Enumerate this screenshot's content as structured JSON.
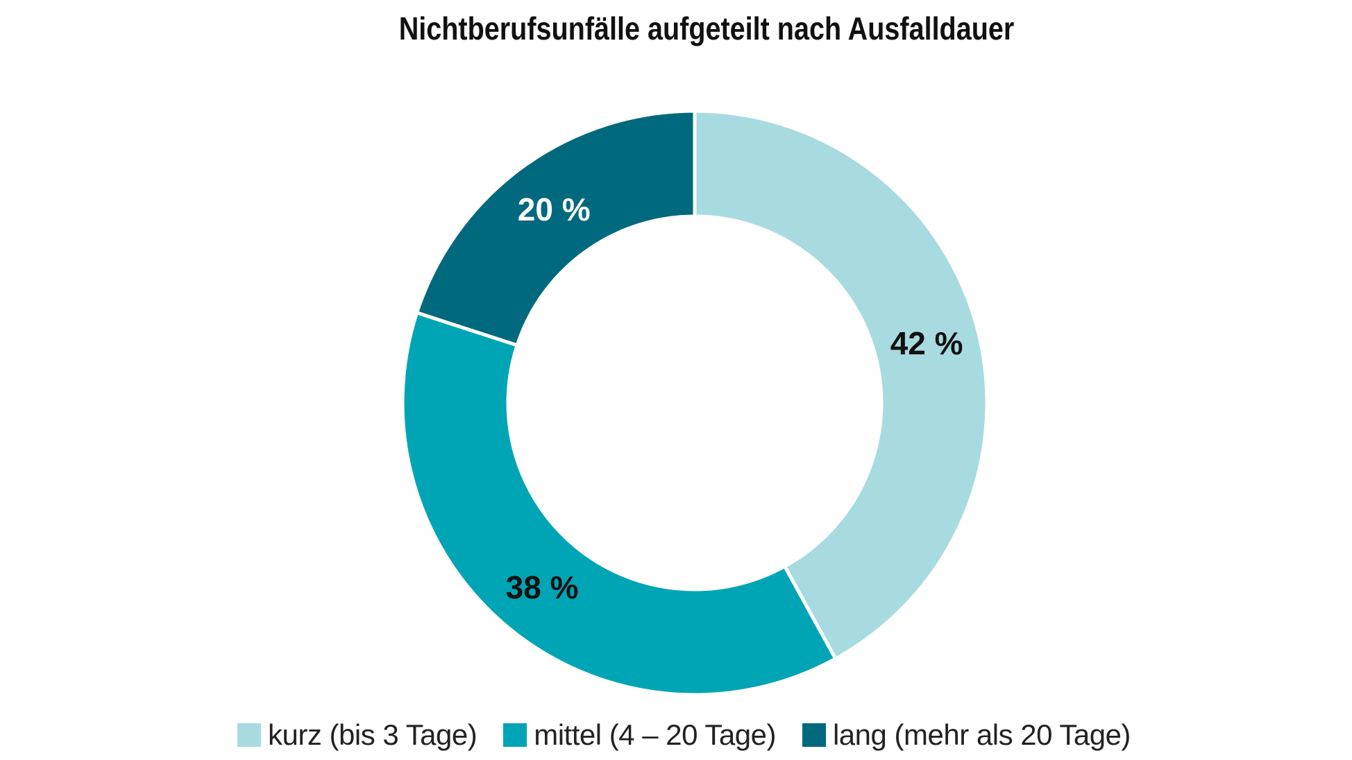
{
  "chart_data": {
    "type": "pie",
    "variant": "donut",
    "title": "Nichtberufsunfälle aufgeteilt nach Ausfalldauer",
    "slices": [
      {
        "label": "kurz (bis 3 Tage)",
        "value": 42,
        "display": "42 %",
        "color": "#a8dbe0",
        "label_color": "#111111"
      },
      {
        "label": "mittel (4 – 20 Tage)",
        "value": 38,
        "display": "38 %",
        "color": "#00a5b5",
        "label_color": "#111111"
      },
      {
        "label": "lang (mehr als 20 Tage)",
        "value": 20,
        "display": "20 %",
        "color": "#00697d",
        "label_color": "#ffffff"
      }
    ],
    "legend_position": "bottom",
    "start_angle": "12 o'clock",
    "direction": "clockwise"
  }
}
